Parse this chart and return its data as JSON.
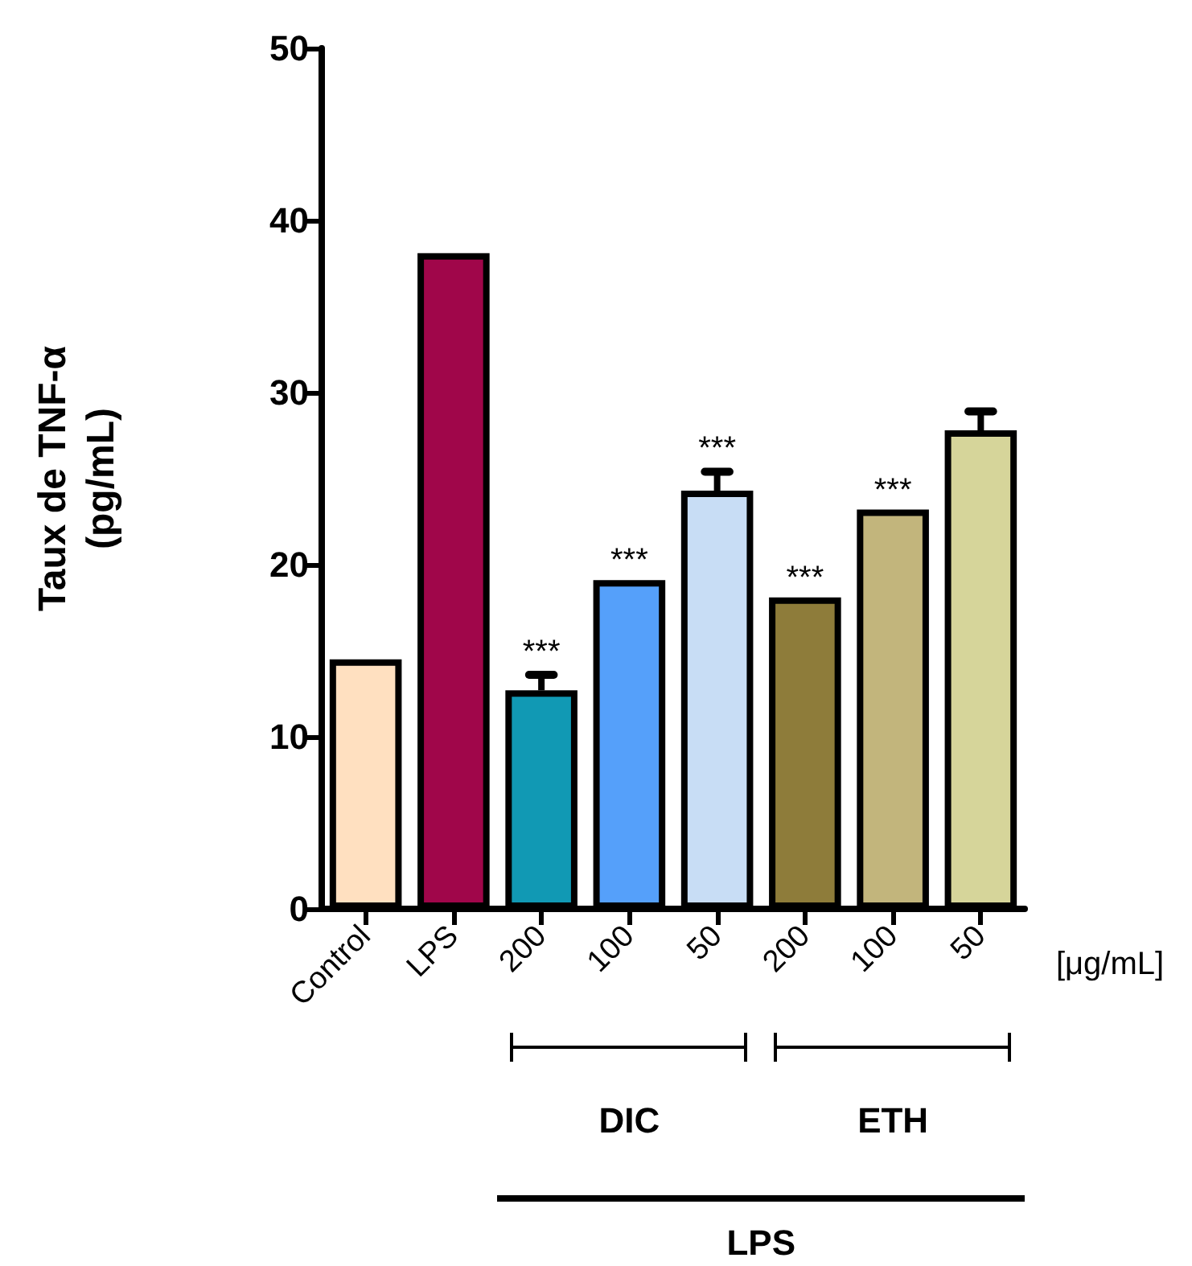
{
  "chart_data": {
    "type": "bar",
    "ylabel": "Taux de TNF-α\n(pg/mL)",
    "categories": [
      "Control",
      "LPS",
      "200",
      "100",
      "50",
      "200",
      "100",
      "50"
    ],
    "values": [
      14.5,
      38.1,
      12.7,
      19.1,
      24.3,
      18.1,
      23.2,
      27.8
    ],
    "colors": [
      "#ffe0c0",
      "#a0064a",
      "#1199b4",
      "#55a0fa",
      "#c8ddf5",
      "#8e7c3a",
      "#c2b57c",
      "#d6d59a"
    ],
    "errors": [
      null,
      null,
      [
        12.7,
        13.6
      ],
      null,
      [
        24.3,
        25.4
      ],
      null,
      null,
      [
        27.8,
        28.9
      ]
    ],
    "value_labels": [
      null,
      null,
      "***",
      "***",
      "***",
      "***",
      "***",
      null
    ],
    "annotations": [
      "[μg/mL]",
      "DIC",
      "ETH",
      "LPS"
    ],
    "ylim": [
      0,
      50
    ],
    "yticks": [
      0,
      10,
      20,
      30,
      40,
      50
    ],
    "grid": false
  }
}
